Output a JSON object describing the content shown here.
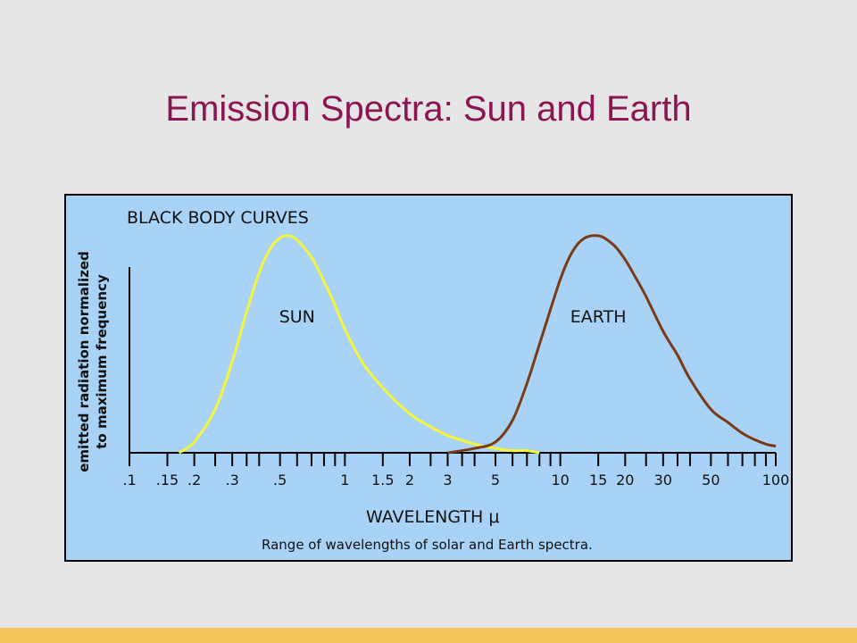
{
  "slide": {
    "title": "Emission Spectra: Sun and Earth",
    "colors": {
      "title": "#8b1550",
      "background": "#e6e6e6",
      "footer": "#f6c75c",
      "plot_bg": "#a8d2f6"
    }
  },
  "chart_data": {
    "type": "line",
    "title": "BLACK BODY CURVES",
    "xlabel": "WAVELENGTH μ",
    "ylabel": [
      "emitted radiation normalized",
      "to maximum frequency"
    ],
    "caption": "Range of wavelengths of solar and Earth spectra.",
    "x_scale": "log",
    "xlim": [
      0.1,
      100
    ],
    "ylim": [
      0,
      1
    ],
    "grid": false,
    "legend": "none",
    "x_tick_labels": [
      {
        "value": 0.1,
        "label": ".1"
      },
      {
        "value": 0.15,
        "label": ".15"
      },
      {
        "value": 0.2,
        "label": ".2"
      },
      {
        "value": 0.3,
        "label": ".3"
      },
      {
        "value": 0.5,
        "label": ".5"
      },
      {
        "value": 1,
        "label": "1"
      },
      {
        "value": 1.5,
        "label": "1.5"
      },
      {
        "value": 2,
        "label": "2"
      },
      {
        "value": 3,
        "label": "3"
      },
      {
        "value": 5,
        "label": "5"
      },
      {
        "value": 10,
        "label": "10"
      },
      {
        "value": 15,
        "label": "15"
      },
      {
        "value": 20,
        "label": "20"
      },
      {
        "value": 30,
        "label": "30"
      },
      {
        "value": 50,
        "label": "50"
      },
      {
        "value": 100,
        "label": "100"
      }
    ],
    "x_ticks": [
      0.1,
      0.15,
      0.2,
      0.25,
      0.3,
      0.35,
      0.4,
      0.5,
      0.6,
      0.7,
      0.8,
      0.9,
      1,
      1.5,
      2,
      2.5,
      3,
      3.5,
      4,
      5,
      6,
      7,
      8,
      9,
      10,
      15,
      20,
      25,
      30,
      35,
      40,
      50,
      60,
      70,
      80,
      90,
      100
    ],
    "series": [
      {
        "name": "SUN",
        "color": "#f5f53c",
        "label_at": {
          "x": 0.6,
          "y": 0.6
        },
        "points": [
          [
            0.17,
            0.0
          ],
          [
            0.2,
            0.05
          ],
          [
            0.25,
            0.2
          ],
          [
            0.3,
            0.42
          ],
          [
            0.35,
            0.65
          ],
          [
            0.4,
            0.83
          ],
          [
            0.45,
            0.94
          ],
          [
            0.5,
            0.99
          ],
          [
            0.55,
            1.0
          ],
          [
            0.6,
            0.98
          ],
          [
            0.7,
            0.9
          ],
          [
            0.8,
            0.79
          ],
          [
            0.9,
            0.68
          ],
          [
            1.0,
            0.57
          ],
          [
            1.2,
            0.42
          ],
          [
            1.5,
            0.3
          ],
          [
            2.0,
            0.18
          ],
          [
            2.5,
            0.12
          ],
          [
            3.0,
            0.08
          ],
          [
            4.0,
            0.04
          ],
          [
            5.0,
            0.02
          ],
          [
            6.0,
            0.01
          ],
          [
            7.0,
            0.01
          ],
          [
            8.0,
            0.0
          ]
        ]
      },
      {
        "name": "EARTH",
        "color": "#7a3a16",
        "label_at": {
          "x": 15,
          "y": 0.6
        },
        "points": [
          [
            3.0,
            0.0
          ],
          [
            4.0,
            0.02
          ],
          [
            5.0,
            0.05
          ],
          [
            6.0,
            0.15
          ],
          [
            7.0,
            0.32
          ],
          [
            8.0,
            0.5
          ],
          [
            9.0,
            0.66
          ],
          [
            10,
            0.8
          ],
          [
            11,
            0.9
          ],
          [
            12,
            0.96
          ],
          [
            13,
            0.99
          ],
          [
            14,
            1.0
          ],
          [
            15,
            1.0
          ],
          [
            16,
            0.99
          ],
          [
            18,
            0.95
          ],
          [
            20,
            0.89
          ],
          [
            22,
            0.82
          ],
          [
            25,
            0.72
          ],
          [
            30,
            0.56
          ],
          [
            35,
            0.45
          ],
          [
            40,
            0.34
          ],
          [
            50,
            0.2
          ],
          [
            60,
            0.14
          ],
          [
            70,
            0.09
          ],
          [
            80,
            0.06
          ],
          [
            90,
            0.04
          ],
          [
            100,
            0.03
          ]
        ]
      }
    ]
  }
}
